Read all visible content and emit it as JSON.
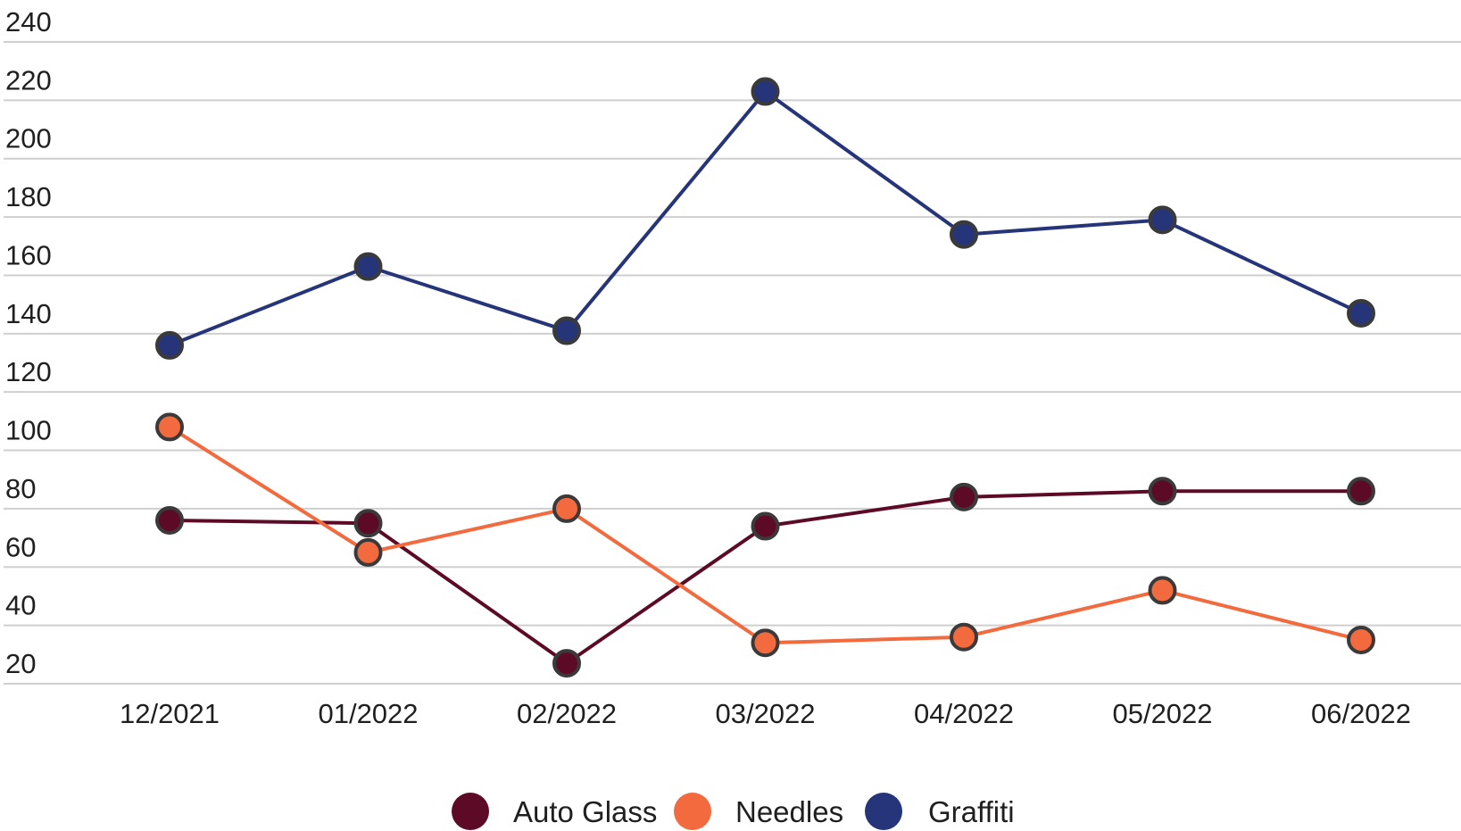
{
  "chart_data": {
    "type": "line",
    "title": "",
    "xlabel": "",
    "ylabel": "",
    "categories": [
      "12/2021",
      "01/2022",
      "02/2022",
      "03/2022",
      "04/2022",
      "05/2022",
      "06/2022"
    ],
    "ylim": [
      20,
      240
    ],
    "yticks": [
      20,
      40,
      60,
      80,
      100,
      120,
      140,
      160,
      180,
      200,
      220,
      240
    ],
    "grid": true,
    "legend_position": "bottom",
    "series": [
      {
        "name": "Auto Glass",
        "color": "#5c0a26",
        "values": [
          76,
          75,
          27,
          74,
          84,
          86,
          86
        ]
      },
      {
        "name": "Needles",
        "color": "#f26a3d",
        "values": [
          108,
          65,
          80,
          34,
          36,
          52,
          35
        ]
      },
      {
        "name": "Graffiti",
        "color": "#26357a",
        "values": [
          136,
          163,
          141,
          223,
          174,
          179,
          147
        ]
      }
    ]
  }
}
